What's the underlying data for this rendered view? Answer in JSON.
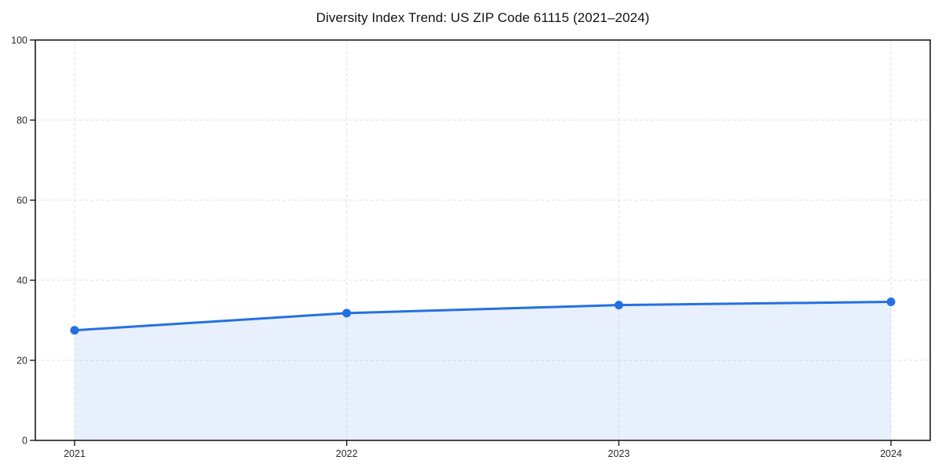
{
  "chart_data": {
    "type": "line",
    "title": "Diversity Index Trend: US ZIP Code 61115 (2021–2024)",
    "categories": [
      "2021",
      "2022",
      "2023",
      "2024"
    ],
    "series": [
      {
        "name": "Diversity Index",
        "values": [
          27.5,
          31.8,
          33.8,
          34.6
        ]
      }
    ],
    "xlabel": "",
    "ylabel": "",
    "ylim": [
      0,
      100
    ],
    "yticks": [
      0,
      20,
      40,
      60,
      80,
      100
    ],
    "grid": true,
    "grid_style": "dashed",
    "legend_position": "none",
    "area_fill_between_first_and_last_point": true,
    "colors": {
      "line": "#2570e0",
      "marker": "#2570e0",
      "area_fill": "rgba(66,133,244,0.12)",
      "gridline": "#e2e2e2",
      "axis": "#1c1c1c",
      "tick_label": "#2b2b2b",
      "title": "#111111",
      "background": "#ffffff"
    }
  }
}
